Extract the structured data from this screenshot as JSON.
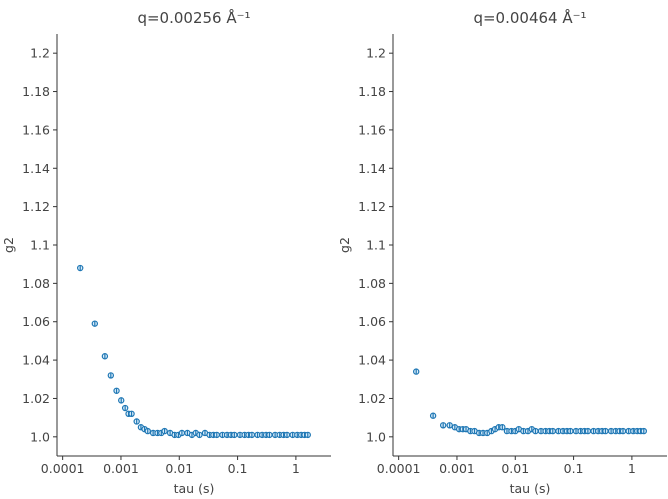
{
  "chart_data": [
    {
      "type": "scatter",
      "title": "q=0.00256 Å⁻¹",
      "xlabel": "tau (s)",
      "ylabel": "g2",
      "xscale": "log",
      "xlim": [
        8e-05,
        4
      ],
      "ylim": [
        0.99,
        1.21
      ],
      "xticks": [
        0.0001,
        0.001,
        0.01,
        0.1,
        1
      ],
      "xtick_labels": [
        "0.0001",
        "0.001",
        "0.01",
        "0.1",
        "1"
      ],
      "yticks": [
        1.0,
        1.02,
        1.04,
        1.06,
        1.08,
        1.1,
        1.12,
        1.14,
        1.16,
        1.18,
        1.2
      ],
      "ytick_labels": [
        "1.0",
        "1.02",
        "1.04",
        "1.06",
        "1.08",
        "1.1",
        "1.12",
        "1.14",
        "1.16",
        "1.18",
        "1.2"
      ],
      "color": "#1f77b4",
      "x": [
        0.0002,
        0.000356,
        0.00053,
        0.00067,
        0.00084,
        0.00101,
        0.00118,
        0.00135,
        0.00152,
        0.00186,
        0.0022,
        0.00254,
        0.00288,
        0.00356,
        0.00424,
        0.00492,
        0.0056,
        0.00696,
        0.00832,
        0.00968,
        0.0111,
        0.0138,
        0.0165,
        0.0192,
        0.0222,
        0.0276,
        0.0331,
        0.0385,
        0.044,
        0.055,
        0.066,
        0.077,
        0.088,
        0.11,
        0.132,
        0.154,
        0.176,
        0.22,
        0.264,
        0.308,
        0.352,
        0.44,
        0.528,
        0.616,
        0.704,
        0.88,
        1.056,
        1.232,
        1.408,
        1.6
      ],
      "y": [
        1.088,
        1.059,
        1.042,
        1.032,
        1.024,
        1.019,
        1.015,
        1.012,
        1.012,
        1.008,
        1.005,
        1.004,
        1.003,
        1.002,
        1.002,
        1.002,
        1.003,
        1.002,
        1.001,
        1.001,
        1.002,
        1.002,
        1.001,
        1.002,
        1.001,
        1.002,
        1.001,
        1.001,
        1.001,
        1.001,
        1.001,
        1.001,
        1.001,
        1.001,
        1.001,
        1.001,
        1.001,
        1.001,
        1.001,
        1.001,
        1.001,
        1.001,
        1.001,
        1.001,
        1.001,
        1.001,
        1.001,
        1.001,
        1.001,
        1.001
      ]
    },
    {
      "type": "scatter",
      "title": "q=0.00464 Å⁻¹",
      "xlabel": "tau (s)",
      "ylabel": "g2",
      "xscale": "log",
      "xlim": [
        8e-05,
        4
      ],
      "ylim": [
        0.99,
        1.21
      ],
      "xticks": [
        0.0001,
        0.001,
        0.01,
        0.1,
        1
      ],
      "xtick_labels": [
        "0.0001",
        "0.001",
        "0.01",
        "0.1",
        "1"
      ],
      "yticks": [
        1.0,
        1.02,
        1.04,
        1.06,
        1.08,
        1.1,
        1.12,
        1.14,
        1.16,
        1.18,
        1.2
      ],
      "ytick_labels": [
        "1.0",
        "1.02",
        "1.04",
        "1.06",
        "1.08",
        "1.1",
        "1.12",
        "1.14",
        "1.16",
        "1.18",
        "1.2"
      ],
      "color": "#1f77b4",
      "x": [
        0.0002,
        0.00039,
        0.00058,
        0.00075,
        0.00092,
        0.00109,
        0.00126,
        0.00143,
        0.0017,
        0.002,
        0.0024,
        0.0028,
        0.0033,
        0.0039,
        0.0045,
        0.0052,
        0.006,
        0.0072,
        0.0086,
        0.01,
        0.0115,
        0.0138,
        0.0165,
        0.0192,
        0.0222,
        0.0276,
        0.0331,
        0.0385,
        0.044,
        0.055,
        0.066,
        0.077,
        0.088,
        0.11,
        0.132,
        0.154,
        0.176,
        0.22,
        0.264,
        0.308,
        0.352,
        0.44,
        0.528,
        0.616,
        0.704,
        0.88,
        1.056,
        1.232,
        1.408,
        1.6
      ],
      "y": [
        1.034,
        1.011,
        1.006,
        1.006,
        1.005,
        1.004,
        1.004,
        1.004,
        1.003,
        1.003,
        1.002,
        1.002,
        1.002,
        1.003,
        1.004,
        1.005,
        1.005,
        1.003,
        1.003,
        1.003,
        1.004,
        1.003,
        1.003,
        1.004,
        1.003,
        1.003,
        1.003,
        1.003,
        1.003,
        1.003,
        1.003,
        1.003,
        1.003,
        1.003,
        1.003,
        1.003,
        1.003,
        1.003,
        1.003,
        1.003,
        1.003,
        1.003,
        1.003,
        1.003,
        1.003,
        1.003,
        1.003,
        1.003,
        1.003,
        1.003
      ]
    }
  ]
}
